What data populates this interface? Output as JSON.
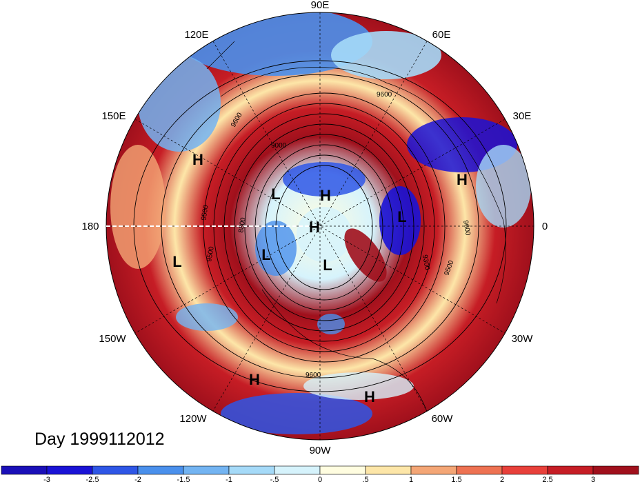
{
  "title": "Day 1999112012",
  "longitude_labels": {
    "lon_90e": "90E",
    "lon_60e": "60E",
    "lon_30e": "30E",
    "lon_0": "0",
    "lon_30w": "30W",
    "lon_60w": "60W",
    "lon_90w": "90W",
    "lon_120w": "120W",
    "lon_150w": "150W",
    "lon_180": "180",
    "lon_150e": "150E",
    "lon_120e": "120E"
  },
  "pressure_centers": [
    {
      "label": "H"
    },
    {
      "label": "H"
    },
    {
      "label": "H"
    },
    {
      "label": "H"
    },
    {
      "label": "H"
    },
    {
      "label": "H"
    },
    {
      "label": "L"
    },
    {
      "label": "L"
    },
    {
      "label": "L"
    },
    {
      "label": "L"
    },
    {
      "label": "L"
    }
  ],
  "contour_labels": [
    "9600",
    "9000",
    "9600",
    "9500",
    "8800",
    "9500",
    "9600",
    "9300",
    "9500",
    "9600"
  ],
  "colorbar": {
    "ticks": [
      "-3",
      "-2.5",
      "-2",
      "-1.5",
      "-1",
      "-.5",
      "0",
      ".5",
      "1",
      "1.5",
      "2",
      "2.5",
      "3"
    ],
    "colors": [
      "#1a13d6",
      "#2e56e6",
      "#4a90ec",
      "#73b4f2",
      "#a5daf8",
      "#d6f3fc",
      "#fffde0",
      "#fde6a8",
      "#f4a676",
      "#ee7252",
      "#e8403a",
      "#c61d25",
      "#a0101c"
    ]
  }
}
